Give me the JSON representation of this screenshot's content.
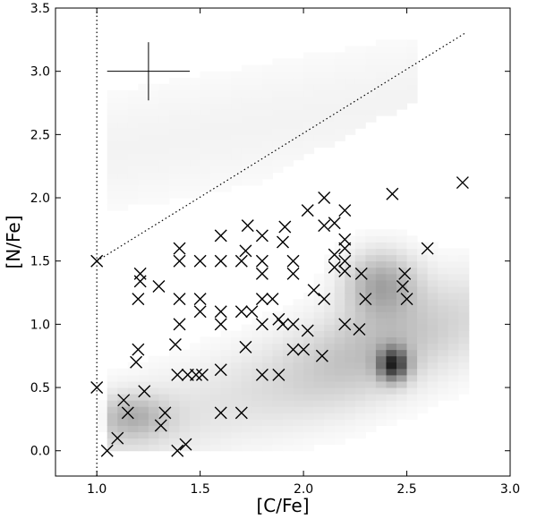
{
  "chart_data": {
    "type": "scatter",
    "title": "",
    "xlabel": "[C/Fe]",
    "ylabel": "[N/Fe]",
    "xlim": [
      0.8,
      3.0
    ],
    "ylim": [
      -0.2,
      3.5
    ],
    "xticks": [
      1.0,
      1.5,
      2.0,
      2.5,
      3.0
    ],
    "xtick_labels": [
      "1.0",
      "1.5",
      "2.0",
      "2.5",
      "3.0"
    ],
    "yticks": [
      0.0,
      0.5,
      1.0,
      1.5,
      2.0,
      2.5,
      3.0,
      3.5
    ],
    "ytick_labels": [
      "0.0",
      "0.5",
      "1.0",
      "1.5",
      "2.0",
      "2.5",
      "3.0",
      "3.5"
    ],
    "grid": false,
    "marker": "x",
    "marker_color": "#000000",
    "series": [
      {
        "points": [
          [
            1.0,
            1.5
          ],
          [
            1.0,
            0.5
          ],
          [
            1.05,
            0.0
          ],
          [
            1.1,
            0.1
          ],
          [
            1.13,
            0.4
          ],
          [
            1.15,
            0.3
          ],
          [
            1.19,
            0.7
          ],
          [
            1.2,
            0.8
          ],
          [
            1.2,
            1.2
          ],
          [
            1.21,
            1.34
          ],
          [
            1.21,
            1.4
          ],
          [
            1.23,
            0.47
          ],
          [
            1.3,
            1.3
          ],
          [
            1.31,
            0.2
          ],
          [
            1.33,
            0.3
          ],
          [
            1.38,
            0.84
          ],
          [
            1.39,
            0.6
          ],
          [
            1.39,
            0.0
          ],
          [
            1.4,
            1.0
          ],
          [
            1.4,
            1.2
          ],
          [
            1.4,
            1.5
          ],
          [
            1.4,
            1.6
          ],
          [
            1.43,
            0.05
          ],
          [
            1.44,
            0.6
          ],
          [
            1.48,
            0.6
          ],
          [
            1.5,
            1.1
          ],
          [
            1.5,
            1.2
          ],
          [
            1.5,
            1.5
          ],
          [
            1.51,
            0.6
          ],
          [
            1.6,
            0.3
          ],
          [
            1.6,
            0.64
          ],
          [
            1.6,
            1.0
          ],
          [
            1.6,
            1.1
          ],
          [
            1.6,
            1.5
          ],
          [
            1.6,
            1.7
          ],
          [
            1.7,
            0.3
          ],
          [
            1.7,
            1.1
          ],
          [
            1.7,
            1.5
          ],
          [
            1.72,
            0.82
          ],
          [
            1.72,
            1.58
          ],
          [
            1.73,
            1.78
          ],
          [
            1.75,
            1.1
          ],
          [
            1.8,
            0.6
          ],
          [
            1.8,
            1.0
          ],
          [
            1.8,
            1.2
          ],
          [
            1.8,
            1.4
          ],
          [
            1.8,
            1.5
          ],
          [
            1.8,
            1.7
          ],
          [
            1.85,
            1.2
          ],
          [
            1.88,
            0.6
          ],
          [
            1.88,
            1.04
          ],
          [
            1.9,
            1.0
          ],
          [
            1.9,
            1.65
          ],
          [
            1.91,
            1.77
          ],
          [
            1.95,
            0.8
          ],
          [
            1.95,
            1.0
          ],
          [
            1.95,
            1.4
          ],
          [
            1.95,
            1.5
          ],
          [
            2.0,
            0.8
          ],
          [
            2.02,
            0.95
          ],
          [
            2.02,
            1.9
          ],
          [
            2.05,
            1.27
          ],
          [
            2.09,
            0.75
          ],
          [
            2.1,
            1.2
          ],
          [
            2.1,
            1.78
          ],
          [
            2.1,
            2.0
          ],
          [
            2.15,
            1.45
          ],
          [
            2.15,
            1.55
          ],
          [
            2.15,
            1.8
          ],
          [
            2.2,
            1.0
          ],
          [
            2.2,
            1.42
          ],
          [
            2.2,
            1.5
          ],
          [
            2.2,
            1.6
          ],
          [
            2.2,
            1.67
          ],
          [
            2.2,
            1.9
          ],
          [
            2.27,
            0.96
          ],
          [
            2.28,
            1.4
          ],
          [
            2.3,
            1.2
          ],
          [
            2.43,
            2.03
          ],
          [
            2.48,
            1.3
          ],
          [
            2.49,
            1.4
          ],
          [
            2.5,
            1.2
          ],
          [
            2.6,
            1.6
          ],
          [
            2.77,
            2.12
          ]
        ]
      }
    ],
    "reference_lines": [
      {
        "style": "dotted",
        "x": [
          1.0,
          1.0
        ],
        "y": [
          -0.2,
          3.5
        ]
      },
      {
        "style": "dotted",
        "x": [
          1.0,
          2.78
        ],
        "y": [
          1.5,
          3.3
        ]
      }
    ],
    "error_bar_example": {
      "x": 1.25,
      "y": 3.0,
      "xerr": 0.2,
      "yerr": 0.23
    },
    "density_background": "grayscale 2D histogram of comparison population"
  }
}
